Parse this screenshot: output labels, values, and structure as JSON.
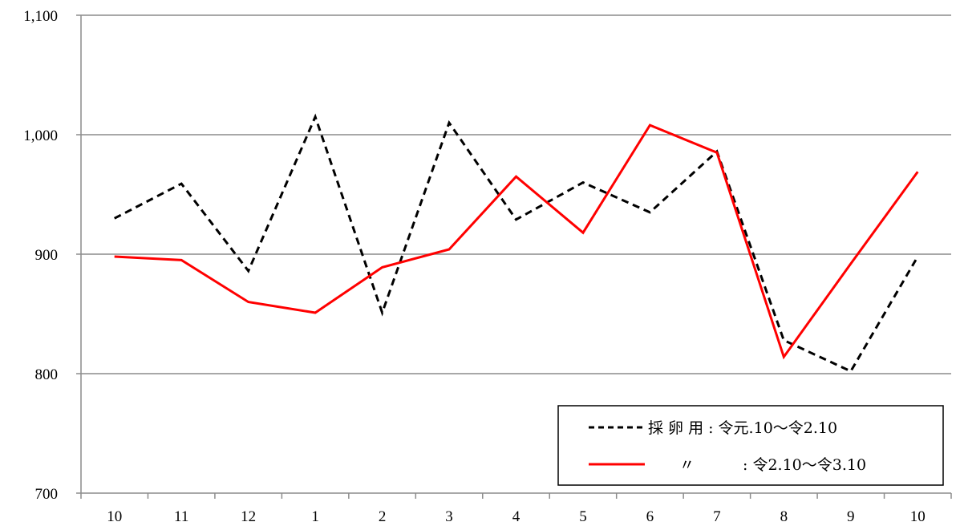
{
  "chart_data": {
    "type": "line",
    "title": "",
    "xlabel": "",
    "ylabel": "",
    "categories": [
      "10",
      "11",
      "12",
      "1",
      "2",
      "3",
      "4",
      "5",
      "6",
      "7",
      "8",
      "9",
      "10"
    ],
    "ylim": [
      700,
      1100
    ],
    "yticks": [
      700,
      800,
      900,
      1000,
      1100
    ],
    "ytick_labels": [
      "700",
      "800",
      "900",
      "1,000",
      "1,100"
    ],
    "grid": true,
    "legend_position": "bottom-right",
    "series": [
      {
        "name": "採 卵 用 : 令元.10～令2.10",
        "color": "#000000",
        "style": "dashed",
        "values": [
          930,
          959,
          886,
          1015,
          851,
          1010,
          929,
          960,
          935,
          986,
          828,
          802,
          898
        ]
      },
      {
        "name": "〃 : 令2.10～令3.10",
        "legend_parts": [
          "〃",
          ": 令2.10～令3.10"
        ],
        "color": "#ff0000",
        "style": "solid",
        "values": [
          898,
          895,
          860,
          851,
          889,
          904,
          965,
          918,
          1008,
          985,
          814,
          892,
          969
        ]
      }
    ]
  },
  "legend": {
    "series1_label": "採 卵 用 : 令元.10～令2.10",
    "series2_mark": "〃",
    "series2_label": ": 令2.10～令3.10"
  }
}
